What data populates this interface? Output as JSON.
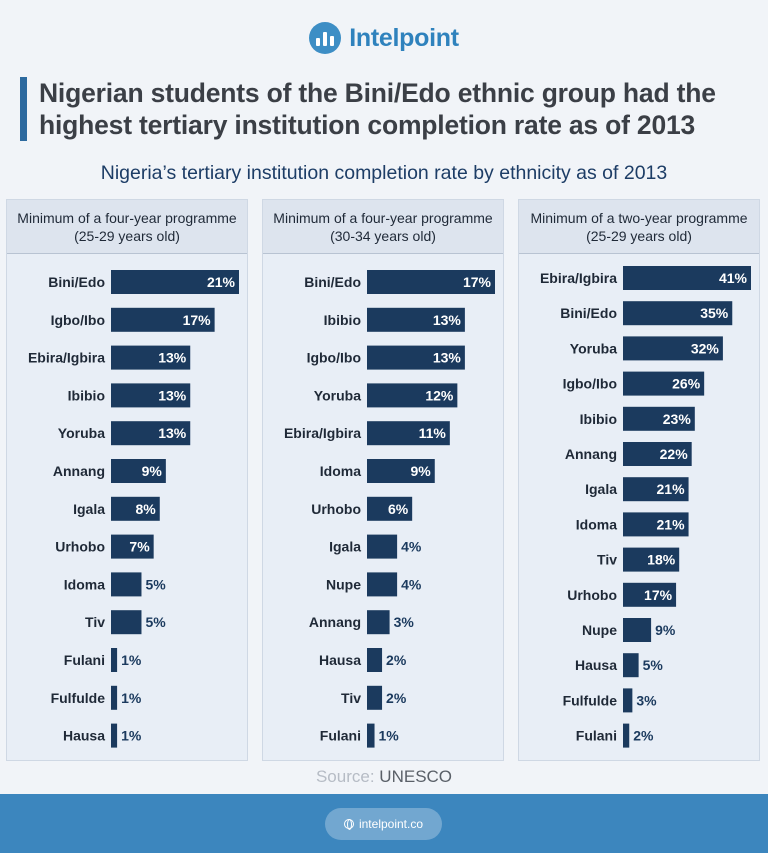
{
  "brand": {
    "name": "Intelpoint",
    "website": "intelpoint.co"
  },
  "headline": "Nigerian students of the Bini/Edo ethnic group had the highest tertiary institution completion rate as of 2013",
  "source": {
    "label": "Source:",
    "value": "UNESCO"
  },
  "colors": {
    "bar": "#1b3a5e",
    "accent": "#3c86be",
    "inside_label": "#ffffff",
    "outside_label": "#1b3a5e"
  },
  "chart_data": [
    {
      "type": "bar",
      "orientation": "horizontal",
      "title": "Nigeria’s tertiary institution completion rate by ethnicity as of 2013",
      "panel_title": "Minimum of a four-year programme (25-29 years old)",
      "unit": "%",
      "categories": [
        "Bini/Edo",
        "Igbo/Ibo",
        "Ebira/Igbira",
        "Ibibio",
        "Yoruba",
        "Annang",
        "Igala",
        "Urhobo",
        "Idoma",
        "Tiv",
        "Fulani",
        "Fulfulde",
        "Hausa"
      ],
      "values": [
        21,
        17,
        13,
        13,
        13,
        9,
        8,
        7,
        5,
        5,
        1,
        1,
        1
      ],
      "labels": [
        "21%",
        "17%",
        "13%",
        "13%",
        "13%",
        "9%",
        "8%",
        "7%",
        "5%",
        "5%",
        "1%",
        "1%",
        "1%"
      ],
      "xlim": [
        0,
        21
      ]
    },
    {
      "type": "bar",
      "orientation": "horizontal",
      "title": "Nigeria’s tertiary institution completion rate by ethnicity as of 2013",
      "panel_title": "Minimum of a four-year programme (30-34 years old)",
      "unit": "%",
      "categories": [
        "Bini/Edo",
        "Ibibio",
        "Igbo/Ibo",
        "Yoruba",
        "Ebira/Igbira",
        "Idoma",
        "Urhobo",
        "Igala",
        "Nupe",
        "Annang",
        "Hausa",
        "Tiv",
        "Fulani"
      ],
      "values": [
        17,
        13,
        13,
        12,
        11,
        9,
        6,
        4,
        4,
        3,
        2,
        2,
        1
      ],
      "labels": [
        "17%",
        "13%",
        "13%",
        "12%",
        "11%",
        "9%",
        "6%",
        "4%",
        "4%",
        "3%",
        "2%",
        "2%",
        "1%"
      ],
      "xlim": [
        0,
        17
      ]
    },
    {
      "type": "bar",
      "orientation": "horizontal",
      "title": "Nigeria’s tertiary institution completion rate by ethnicity as of 2013",
      "panel_title": "Minimum of a two-year programme (25-29 years old)",
      "unit": "%",
      "categories": [
        "Ebira/Igbira",
        "Bini/Edo",
        "Yoruba",
        "Igbo/Ibo",
        "Ibibio",
        "Annang",
        "Igala",
        "Idoma",
        "Tiv",
        "Urhobo",
        "Nupe",
        "Hausa",
        "Fulfulde",
        "Fulani"
      ],
      "values": [
        41,
        35,
        32,
        26,
        23,
        22,
        21,
        21,
        18,
        17,
        9,
        5,
        3,
        2
      ],
      "labels": [
        "41%",
        "35%",
        "32%",
        "26%",
        "23%",
        "22%",
        "21%",
        "21%",
        "18%",
        "17%",
        "9%",
        "5%",
        "3%",
        "2%"
      ],
      "xlim": [
        0,
        41
      ]
    }
  ]
}
